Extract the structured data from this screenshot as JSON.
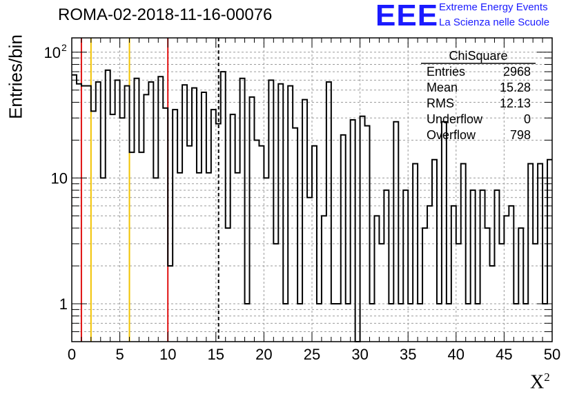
{
  "title": "ROMA-02-2018-11-16-00076",
  "logo": {
    "mark": "EEE",
    "line1": "Extreme Energy Events",
    "line2": "La Scienza nelle Scuole"
  },
  "stats": {
    "name": "ChiSquare",
    "rows": [
      {
        "label": "Entries",
        "value": "2968"
      },
      {
        "label": "Mean",
        "value": "15.28"
      },
      {
        "label": "RMS",
        "value": "12.13"
      },
      {
        "label": "Underflow",
        "value": "0"
      },
      {
        "label": "Overflow",
        "value": "798"
      }
    ]
  },
  "chart_data": {
    "type": "bar",
    "histogram": true,
    "title": "ROMA-02-2018-11-16-00076",
    "xlabel": "X",
    "xlabel_sup": "2",
    "ylabel": "Entries/bin",
    "xlim": [
      0,
      50
    ],
    "ylim": [
      0.5,
      130
    ],
    "ylog": true,
    "bin_width": 0.5,
    "x_ticks": [
      "0",
      "5",
      "10",
      "15",
      "20",
      "25",
      "30",
      "35",
      "40",
      "45",
      "50"
    ],
    "y_ticks": [
      {
        "value": 1,
        "label": "1"
      },
      {
        "value": 10,
        "label": "10"
      },
      {
        "value": 100,
        "label": "10",
        "exp": "2"
      }
    ],
    "grid": true,
    "values": [
      66,
      56,
      54,
      54,
      34,
      58,
      10,
      72,
      32,
      60,
      30,
      54,
      16,
      62,
      16,
      46,
      58,
      10,
      64,
      36,
      2,
      35,
      11,
      55,
      18,
      52,
      11,
      48,
      11,
      35,
      27,
      70,
      4,
      32,
      11,
      62,
      1,
      44,
      20,
      18,
      10,
      60,
      3,
      56,
      1,
      54,
      25,
      1,
      42,
      7,
      18,
      1,
      5,
      58,
      1,
      1,
      22,
      1,
      29,
      0.1,
      31,
      26,
      1,
      5,
      3,
      8,
      1,
      28,
      1,
      8,
      1,
      13,
      1,
      4,
      6,
      14,
      1,
      28,
      1,
      6,
      3,
      13,
      1,
      8,
      1,
      8,
      4,
      2,
      8,
      3,
      5,
      6,
      1,
      4,
      1,
      13,
      3,
      13,
      1,
      14
    ],
    "vertical_lines": [
      {
        "x": 1,
        "color": "#e01010",
        "style": "solid"
      },
      {
        "x": 2,
        "color": "#f2c200",
        "style": "solid"
      },
      {
        "x": 6,
        "color": "#f2c200",
        "style": "solid"
      },
      {
        "x": 10,
        "color": "#e01010",
        "style": "solid"
      },
      {
        "x": 15.28,
        "color": "#000000",
        "style": "dashed"
      }
    ]
  }
}
